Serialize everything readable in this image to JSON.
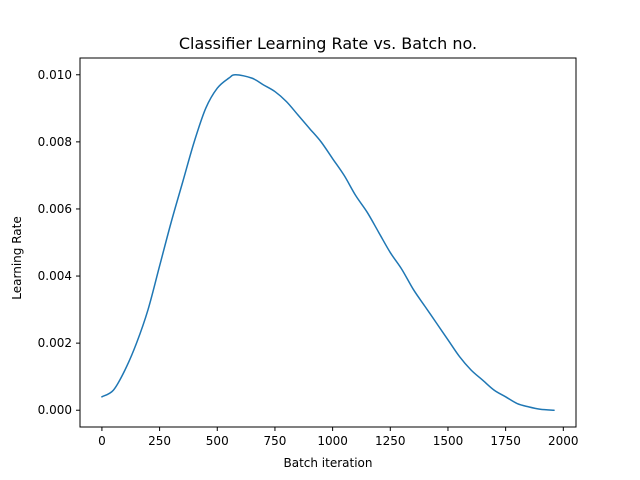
{
  "chart_data": {
    "type": "line",
    "title": "Classifier Learning Rate vs. Batch no.",
    "xlabel": "Batch iteration",
    "ylabel": "Learning Rate",
    "xlim": [
      -95,
      2055
    ],
    "ylim": [
      -0.0005,
      0.0105
    ],
    "x_ticks": [
      0,
      250,
      500,
      750,
      1000,
      1250,
      1500,
      1750,
      2000
    ],
    "x_tick_labels": [
      "0",
      "250",
      "500",
      "750",
      "1000",
      "1250",
      "1500",
      "1750",
      "2000"
    ],
    "y_ticks": [
      0.0,
      0.002,
      0.004,
      0.006,
      0.008,
      0.01
    ],
    "y_tick_labels": [
      "0.000",
      "0.002",
      "0.004",
      "0.006",
      "0.008",
      "0.010"
    ],
    "grid": false,
    "legend": "none",
    "line_color": "#1f77b4",
    "series": [
      {
        "x": [
          0,
          50,
          100,
          150,
          200,
          250,
          300,
          350,
          400,
          450,
          500,
          550,
          580,
          650,
          700,
          750,
          800,
          850,
          900,
          950,
          1000,
          1050,
          1100,
          1150,
          1200,
          1250,
          1300,
          1350,
          1400,
          1450,
          1500,
          1550,
          1600,
          1650,
          1700,
          1750,
          1800,
          1850,
          1900,
          1960
        ],
        "values": [
          0.0004,
          0.0006,
          0.0012,
          0.002,
          0.003,
          0.0043,
          0.0056,
          0.0068,
          0.008,
          0.009,
          0.0096,
          0.0099,
          0.01,
          0.0099,
          0.0097,
          0.0095,
          0.0092,
          0.0088,
          0.0084,
          0.008,
          0.0075,
          0.007,
          0.0064,
          0.0059,
          0.0053,
          0.0047,
          0.0042,
          0.0036,
          0.0031,
          0.0026,
          0.0021,
          0.0016,
          0.0012,
          0.0009,
          0.0006,
          0.0004,
          0.0002,
          0.0001,
          3e-05,
          0.0
        ]
      }
    ]
  }
}
